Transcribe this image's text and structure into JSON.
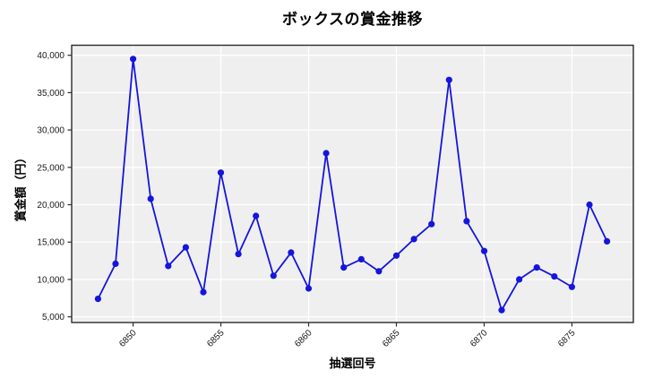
{
  "figure": {
    "title": "ボックスの賞金推移",
    "xlabel": "抽選回号",
    "ylabel": "賞金額（円）"
  },
  "chart_data": {
    "type": "line",
    "title": "ボックスの賞金推移",
    "xlabel": "抽選回号",
    "ylabel": "賞金額（円）",
    "x": [
      6848,
      6849,
      6850,
      6851,
      6852,
      6853,
      6854,
      6855,
      6856,
      6857,
      6858,
      6859,
      6860,
      6861,
      6862,
      6863,
      6864,
      6865,
      6866,
      6867,
      6868,
      6869,
      6870,
      6871,
      6872,
      6873,
      6874,
      6875,
      6876,
      6877
    ],
    "values": [
      7400,
      12100,
      39500,
      20800,
      11800,
      14300,
      8300,
      24300,
      13400,
      18500,
      10500,
      13600,
      8800,
      26900,
      11600,
      12700,
      11100,
      13200,
      15400,
      17400,
      36700,
      17800,
      13800,
      5900,
      10000,
      11600,
      10400,
      9000,
      20000,
      15100
    ],
    "series_name": "ボックス",
    "xticks": [
      6850,
      6855,
      6860,
      6865,
      6870,
      6875
    ],
    "yticks": [
      5000,
      10000,
      15000,
      20000,
      25000,
      30000,
      35000,
      40000
    ],
    "xlim": [
      6846.5,
      6878.5
    ],
    "ylim": [
      4240,
      41340
    ],
    "grid": true,
    "legend": "none",
    "xtick_rotation": 45,
    "colors": {
      "line": "#1515dd",
      "marker": "#1515dd",
      "plot_background": "#efefef",
      "grid": "#ffffff",
      "spine": "#2b2b2b",
      "tick_text": "#1a1a1a"
    }
  }
}
